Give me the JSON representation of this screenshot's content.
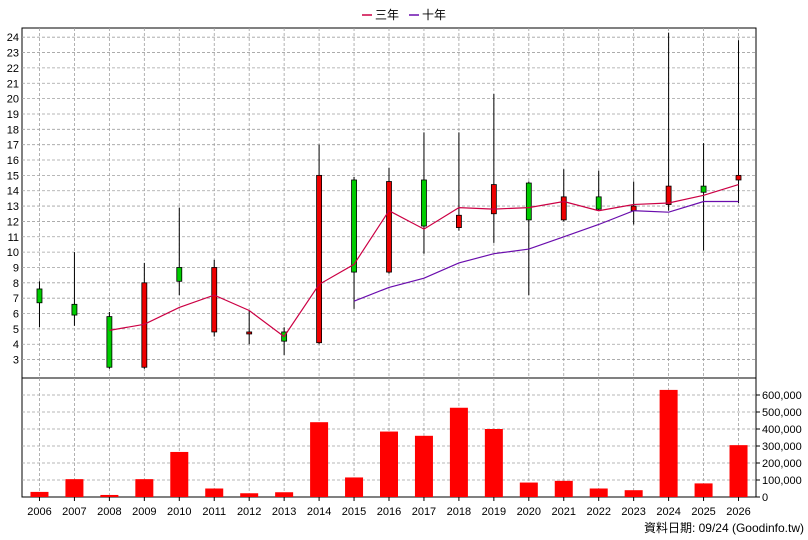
{
  "chart_data": {
    "type": "candlestick+line+bar",
    "legend": [
      {
        "name": "三年",
        "color": "#cc0044"
      },
      {
        "name": "十年",
        "color": "#6a0dad"
      }
    ],
    "legend_position": "top-center",
    "grid": true,
    "source_label": "資料日期: 09/24  (Goodinfo.tw)",
    "price_axis": {
      "ylim": [
        1.8,
        24.6
      ],
      "ticks": [
        "3",
        "4",
        "5",
        "6",
        "7",
        "8",
        "9",
        "10",
        "11",
        "12",
        "13",
        "14",
        "15",
        "16",
        "17",
        "18",
        "19",
        "20",
        "21",
        "22",
        "23",
        "24"
      ]
    },
    "volume_axis": {
      "ylim": [
        0,
        700000
      ],
      "ticks": [
        "0",
        "100,000",
        "200,000",
        "300,000",
        "400,000",
        "500,000",
        "600,000"
      ],
      "tick_values": [
        0,
        100000,
        200000,
        300000,
        400000,
        500000,
        600000
      ]
    },
    "categories": [
      "2006",
      "2007",
      "2008",
      "2009",
      "2010",
      "2011",
      "2012",
      "2013",
      "2014",
      "2015",
      "2016",
      "2017",
      "2018",
      "2019",
      "2020",
      "2021",
      "2022",
      "2023",
      "2024",
      "2025",
      "2026"
    ],
    "candles": [
      {
        "open": 6.7,
        "close": 7.6,
        "high": 8.1,
        "low": 5.1
      },
      {
        "open": 5.9,
        "close": 6.6,
        "high": 10.0,
        "low": 5.2
      },
      {
        "open": 2.5,
        "close": 5.8,
        "high": 6.1,
        "low": 2.4
      },
      {
        "open": 8.0,
        "close": 2.5,
        "high": 9.3,
        "low": 2.4
      },
      {
        "open": 8.1,
        "close": 9.0,
        "high": 12.9,
        "low": 7.2
      },
      {
        "open": 9.0,
        "close": 4.8,
        "high": 9.5,
        "low": 4.5
      },
      {
        "open": 4.8,
        "close": 4.7,
        "high": 6.2,
        "low": 4.0
      },
      {
        "open": 4.2,
        "close": 4.8,
        "high": 5.1,
        "low": 3.3
      },
      {
        "open": 15.0,
        "close": 4.1,
        "high": 17.0,
        "low": 4.0
      },
      {
        "open": 8.7,
        "close": 14.7,
        "high": 14.9,
        "low": 6.3
      },
      {
        "open": 14.6,
        "close": 8.7,
        "high": 15.5,
        "low": 8.6
      },
      {
        "open": 11.7,
        "close": 14.7,
        "high": 17.8,
        "low": 9.9
      },
      {
        "open": 12.4,
        "close": 11.6,
        "high": 17.8,
        "low": 11.4
      },
      {
        "open": 14.4,
        "close": 12.5,
        "high": 20.3,
        "low": 10.6
      },
      {
        "open": 12.1,
        "close": 14.5,
        "high": 14.6,
        "low": 7.2
      },
      {
        "open": 13.6,
        "close": 12.1,
        "high": 15.4,
        "low": 12.0
      },
      {
        "open": 12.8,
        "close": 13.6,
        "high": 15.3,
        "low": 12.7
      },
      {
        "open": 13.0,
        "close": 12.7,
        "high": 14.6,
        "low": 11.8
      },
      {
        "open": 14.3,
        "close": 13.1,
        "high": 24.3,
        "low": 12.7
      },
      {
        "open": 13.9,
        "close": 14.3,
        "high": 17.1,
        "low": 10.1
      },
      {
        "open": 15.0,
        "close": 14.7,
        "high": 23.8,
        "low": 13.2
      }
    ],
    "series": [
      {
        "name": "三年",
        "values": [
          null,
          null,
          4.9,
          5.3,
          6.4,
          7.2,
          6.2,
          4.5,
          7.9,
          9.2,
          12.7,
          11.5,
          12.9,
          12.8,
          12.9,
          13.3,
          12.7,
          13.1,
          13.2,
          13.7,
          14.4
        ]
      },
      {
        "name": "十年",
        "values": [
          null,
          null,
          null,
          null,
          null,
          null,
          null,
          null,
          null,
          6.8,
          7.7,
          8.3,
          9.3,
          9.9,
          10.2,
          11.0,
          11.8,
          12.7,
          12.6,
          13.3,
          13.3
        ]
      }
    ],
    "volume": [
      30000,
      105000,
      12000,
      105000,
      265000,
      50000,
      22000,
      28000,
      440000,
      115000,
      385000,
      360000,
      525000,
      400000,
      85000,
      95000,
      50000,
      40000,
      630000,
      80000,
      305000
    ]
  }
}
